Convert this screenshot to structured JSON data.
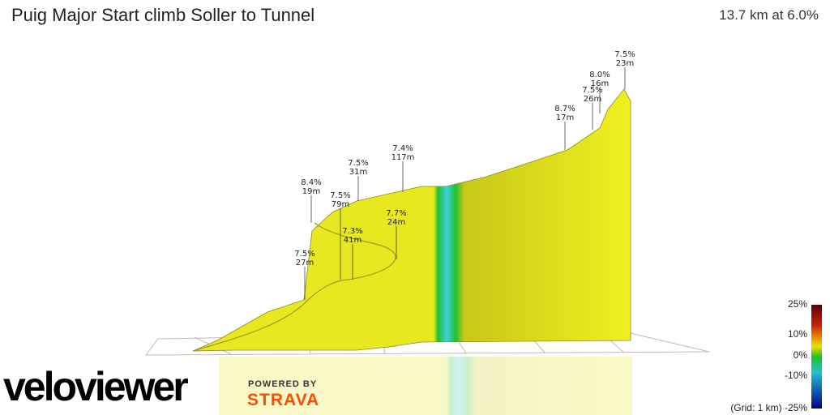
{
  "header": {
    "title": "Puig Major Start climb Soller to Tunnel",
    "summary": "13.7 km at 6.0%"
  },
  "annotations": [
    {
      "gradient": "7.5%",
      "length": "23m"
    },
    {
      "gradient": "8.0%",
      "length": "16m"
    },
    {
      "gradient": "7.5%",
      "length": "26m"
    },
    {
      "gradient": "8.7%",
      "length": "17m"
    },
    {
      "gradient": "7.4%",
      "length": "117m"
    },
    {
      "gradient": "7.5%",
      "length": "31m"
    },
    {
      "gradient": "8.4%",
      "length": "19m"
    },
    {
      "gradient": "7.5%",
      "length": "79m"
    },
    {
      "gradient": "7.7%",
      "length": "24m"
    },
    {
      "gradient": "7.3%",
      "length": "41m"
    },
    {
      "gradient": "7.5%",
      "length": "27m"
    }
  ],
  "legend": {
    "labels": [
      "25%",
      "10%",
      "0%",
      "-10%",
      "(Grid: 1 km) -25%"
    ]
  },
  "branding": {
    "logo": "veloviewer",
    "powered": "POWERED BY",
    "partner": "STRAVA"
  }
}
